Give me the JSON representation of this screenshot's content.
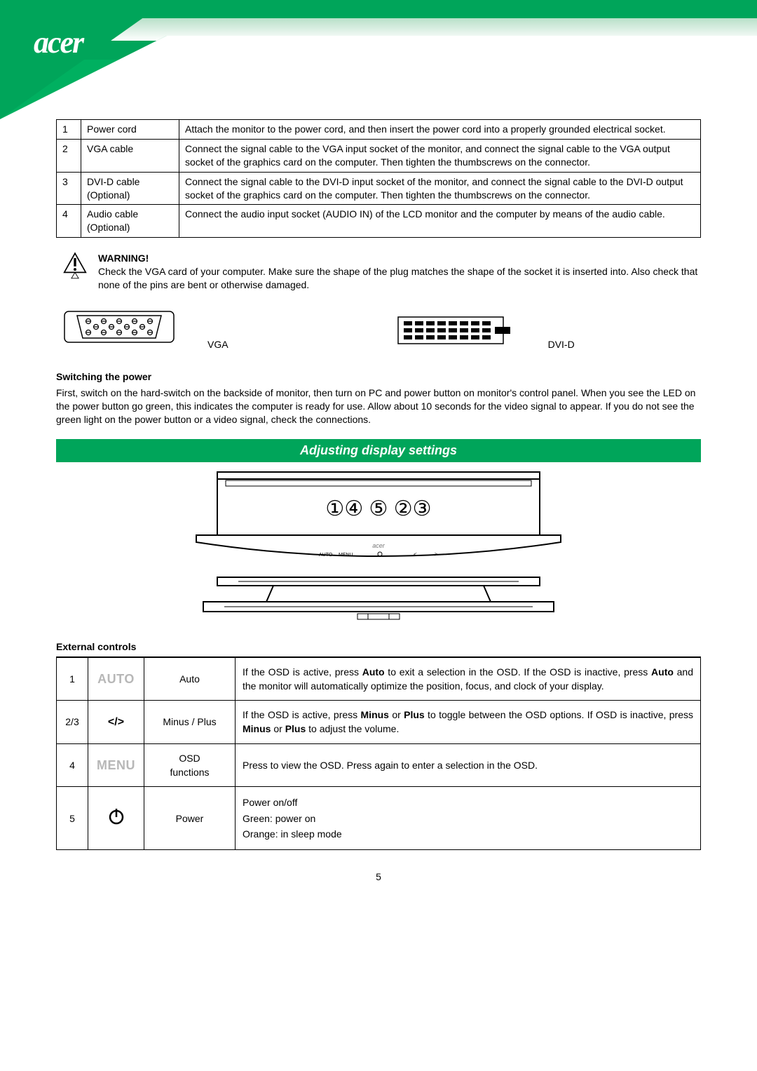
{
  "brand": "acer",
  "cables_table": {
    "rows": [
      {
        "num": "1",
        "name": "Power cord",
        "desc": "Attach the monitor to the power cord, and then insert the power cord into a properly grounded electrical socket."
      },
      {
        "num": "2",
        "name": "VGA cable",
        "desc": "Connect the signal cable to the VGA input socket of the monitor, and connect the signal cable to the VGA output socket of the graphics card on the computer. Then tighten the thumbscrews on the connector."
      },
      {
        "num": "3",
        "name": "DVI-D cable (Optional)",
        "desc": "Connect the signal cable to the DVI-D input socket of the monitor, and connect the signal cable to the DVI-D output socket of the graphics card on the computer. Then tighten the thumbscrews on the connector."
      },
      {
        "num": "4",
        "name": "Audio cable (Optional)",
        "desc": "Connect the audio input socket (AUDIO IN) of the LCD monitor and the computer by means of the audio cable."
      }
    ]
  },
  "warning": {
    "title": "WARNING!",
    "body": "Check the VGA card of your computer. Make sure the shape of the plug matches the shape of the socket it is inserted into. Also check that none of the pins are bent or otherwise damaged."
  },
  "connector_labels": {
    "vga": "VGA",
    "dvid": "DVI-D"
  },
  "switching": {
    "title": "Switching the power",
    "body": "First, switch on the hard-switch on the backside of monitor, then turn on PC and power button on monitor's control panel. When you see the LED on the power button go green, this indicates the computer is ready for use. Allow about 10 seconds for the video signal to appear. If you do not see the green light on the power button or a video signal, check the connections."
  },
  "banner": "Adjusting display settings",
  "callouts": "①④ ⑤ ②③",
  "controls": {
    "title": "External controls",
    "rows": [
      {
        "num": "1",
        "icon_text": "AUTO",
        "icon_class": "icon-auto",
        "name": "Auto",
        "desc_html": "If the OSD is active, press <b>Auto</b> to exit a selection in the OSD. If the OSD is inactive, press <b>Auto</b> and the monitor will automatically optimize the position, focus, and clock of your display."
      },
      {
        "num": "2/3",
        "icon_text": "</>",
        "icon_class": "icon-angles",
        "name": "Minus / Plus",
        "desc_html": "If the OSD is active, press <b>Minus</b> or <b>Plus</b> to toggle between the OSD options. If OSD is inactive, press <b>Minus</b> or <b>Plus</b> to adjust the volume."
      },
      {
        "num": "4",
        "icon_text": "MENU",
        "icon_class": "icon-menu",
        "name": "OSD functions",
        "desc_html": "Press to view the OSD. Press again to enter a selection in the OSD."
      },
      {
        "num": "5",
        "icon_text": "",
        "icon_class": "powericon",
        "name": "Power",
        "desc_lines": [
          "Power on/off",
          "Green: power on",
          "Orange: in sleep mode"
        ]
      }
    ]
  },
  "page_number": "5",
  "colors": {
    "accent": "#00a55a",
    "outline_gray": "#b7b7b7"
  }
}
